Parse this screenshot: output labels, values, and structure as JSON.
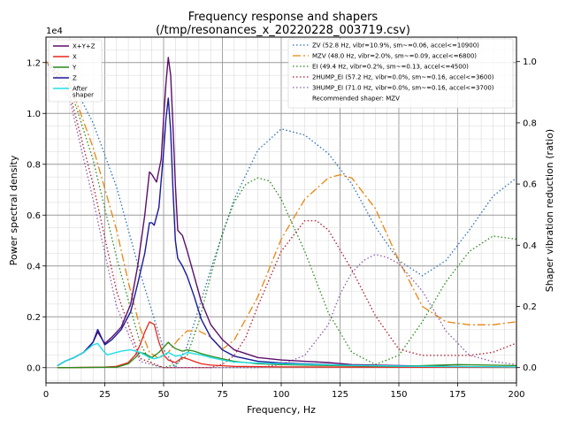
{
  "chart_data": {
    "type": "line",
    "title": "Frequency response and shapers",
    "subtitle": "(/tmp/resonances_x_20220228_003719.csv)",
    "xlabel": "Frequency, Hz",
    "ylabel": "Power spectral density",
    "y2label": "Shaper vibration reduction (ratio)",
    "y_multiplier_label": "1e4",
    "xlim": [
      0,
      200
    ],
    "ylim": [
      -0.06,
      1.3
    ],
    "y2lim": [
      -0.05,
      1.08
    ],
    "grid": true,
    "x_ticks": [
      0,
      25,
      50,
      75,
      100,
      125,
      150,
      175,
      200
    ],
    "y_ticks": [
      0.0,
      0.2,
      0.4,
      0.6,
      0.8,
      1.0,
      1.2
    ],
    "y_tick_labels": [
      "0.0",
      "0.2",
      "0.4",
      "0.6",
      "0.8",
      "1.0",
      "1.2"
    ],
    "y2_ticks": [
      0.0,
      0.2,
      0.4,
      0.6,
      0.8,
      1.0
    ],
    "y2_tick_labels": [
      "0.0",
      "0.2",
      "0.4",
      "0.6",
      "0.8",
      "1.0"
    ],
    "legend_left": {
      "placement": "top-left",
      "entries": [
        {
          "label": "X+Y+Z",
          "color": "#5c0f6b"
        },
        {
          "label": "X",
          "color": "#e8261b"
        },
        {
          "label": "Y",
          "color": "#2a8a1a"
        },
        {
          "label": "Z",
          "color": "#1a1a9a"
        },
        {
          "label": "After\nshaper",
          "color": "#22e0e8"
        }
      ]
    },
    "legend_right": {
      "placement": "top-right",
      "entries": [
        {
          "label": "ZV (52.8 Hz, vibr=10.9%, sm~=0.06, accel<=10900)",
          "color": "#2b6fb4",
          "dash": "1.5,2.5"
        },
        {
          "label": "MZV (48.0 Hz, vibr=2.0%, sm~=0.09, accel<=6800)",
          "color": "#e88612",
          "dash": "9,3,2,3"
        },
        {
          "label": "EI (49.4 Hz, vibr=0.2%, sm~=0.13, accel<=4500)",
          "color": "#2a8a1a",
          "dash": "1.5,2.5"
        },
        {
          "label": "2HUMP_EI (57.2 Hz, vibr=0.0%, sm~=0.16, accel<=3600)",
          "color": "#b2182b",
          "dash": "1.5,2.5"
        },
        {
          "label": "3HUMP_EI (71.0 Hz, vibr=0.0%, sm~=0.16, accel<=3700)",
          "color": "#8e5ba8",
          "dash": "1.5,2.5"
        }
      ],
      "recommended": "Recommended shaper: MZV"
    },
    "series": [
      {
        "name": "X+Y+Z",
        "axis": "left",
        "color": "#5c0f6b",
        "width": 1.4,
        "x": [
          5,
          8,
          12,
          16,
          20,
          22,
          25,
          28,
          32,
          36,
          39,
          42,
          44,
          45,
          47,
          49,
          50,
          51,
          52,
          53,
          54,
          55,
          56,
          58,
          60,
          63,
          66,
          70,
          75,
          80,
          90,
          100,
          110,
          120,
          130,
          150,
          175,
          200
        ],
        "y": [
          0.008,
          0.025,
          0.04,
          0.06,
          0.1,
          0.14,
          0.095,
          0.12,
          0.16,
          0.25,
          0.4,
          0.6,
          0.77,
          0.76,
          0.73,
          0.82,
          0.98,
          1.12,
          1.22,
          1.15,
          0.95,
          0.72,
          0.54,
          0.52,
          0.46,
          0.36,
          0.26,
          0.17,
          0.11,
          0.07,
          0.04,
          0.03,
          0.025,
          0.02,
          0.012,
          0.008,
          0.004,
          0.002
        ]
      },
      {
        "name": "Z",
        "axis": "left",
        "color": "#1a1a9a",
        "width": 1.4,
        "x": [
          5,
          8,
          12,
          16,
          20,
          22,
          25,
          28,
          32,
          36,
          39,
          42,
          44,
          45,
          46,
          48,
          50,
          51,
          52,
          53,
          54,
          55,
          56,
          58,
          60,
          63,
          66,
          70,
          75,
          80,
          90,
          100,
          110,
          120,
          130,
          150,
          175,
          200
        ],
        "y": [
          0.008,
          0.025,
          0.04,
          0.06,
          0.1,
          0.15,
          0.09,
          0.11,
          0.15,
          0.22,
          0.33,
          0.45,
          0.57,
          0.57,
          0.56,
          0.63,
          0.85,
          0.98,
          1.06,
          0.93,
          0.7,
          0.5,
          0.43,
          0.4,
          0.36,
          0.28,
          0.19,
          0.12,
          0.07,
          0.045,
          0.025,
          0.018,
          0.015,
          0.012,
          0.009,
          0.006,
          0.004,
          0.002
        ]
      },
      {
        "name": "X",
        "axis": "left",
        "color": "#e8261b",
        "width": 1.3,
        "x": [
          5,
          25,
          30,
          35,
          38,
          40,
          42,
          44,
          46,
          48,
          50,
          52,
          55,
          58,
          60,
          63,
          66,
          70,
          80,
          100,
          150,
          200
        ],
        "y": [
          0.0,
          0.002,
          0.005,
          0.02,
          0.05,
          0.09,
          0.14,
          0.18,
          0.17,
          0.1,
          0.05,
          0.03,
          0.02,
          0.04,
          0.035,
          0.025,
          0.015,
          0.01,
          0.005,
          0.003,
          0.002,
          0.001
        ]
      },
      {
        "name": "Y",
        "axis": "left",
        "color": "#2a8a1a",
        "width": 1.3,
        "x": [
          5,
          30,
          35,
          38,
          40,
          42,
          45,
          48,
          50,
          52,
          53,
          55,
          58,
          60,
          63,
          66,
          70,
          75,
          80,
          90,
          100,
          120,
          150,
          175,
          200
        ],
        "y": [
          0.0,
          0.002,
          0.015,
          0.04,
          0.06,
          0.055,
          0.04,
          0.06,
          0.08,
          0.1,
          0.09,
          0.075,
          0.065,
          0.07,
          0.065,
          0.055,
          0.045,
          0.035,
          0.025,
          0.015,
          0.012,
          0.008,
          0.005,
          0.012,
          0.008
        ]
      },
      {
        "name": "After\nshaper",
        "axis": "left",
        "color": "#22e0e8",
        "width": 1.4,
        "x": [
          5,
          8,
          12,
          16,
          20,
          22,
          24,
          26,
          28,
          32,
          36,
          40,
          42,
          44,
          46,
          48,
          50,
          52,
          55,
          58,
          60,
          63,
          66,
          70,
          75,
          80,
          90,
          100,
          110,
          120,
          130,
          150,
          175,
          200
        ],
        "y": [
          0.008,
          0.025,
          0.04,
          0.06,
          0.09,
          0.095,
          0.07,
          0.05,
          0.055,
          0.065,
          0.07,
          0.06,
          0.05,
          0.04,
          0.035,
          0.04,
          0.05,
          0.06,
          0.045,
          0.05,
          0.06,
          0.055,
          0.05,
          0.04,
          0.03,
          0.022,
          0.018,
          0.015,
          0.013,
          0.011,
          0.009,
          0.006,
          0.004,
          0.003
        ]
      },
      {
        "name": "ZV (52.8 Hz, vibr=10.9%, sm~=0.06, accel<=10900)",
        "axis": "right",
        "color": "#2b6fb4",
        "dash": "1.5,2.5",
        "width": 1.3,
        "x": [
          0,
          10,
          20,
          30,
          40,
          50,
          55,
          60,
          70,
          80,
          90,
          100,
          110,
          120,
          130,
          140,
          150,
          160,
          170,
          180,
          190,
          200
        ],
        "y": [
          1.0,
          0.95,
          0.8,
          0.59,
          0.31,
          0.06,
          0.0,
          0.07,
          0.32,
          0.55,
          0.71,
          0.78,
          0.76,
          0.7,
          0.6,
          0.46,
          0.35,
          0.3,
          0.35,
          0.45,
          0.56,
          0.62
        ]
      },
      {
        "name": "MZV (48.0 Hz, vibr=2.0%, sm~=0.09, accel<=6800)",
        "axis": "right",
        "color": "#e88612",
        "dash": "9,3,2,3",
        "width": 1.3,
        "x": [
          0,
          10,
          20,
          30,
          35,
          40,
          44,
          48,
          52,
          56,
          60,
          65,
          70,
          75,
          80,
          90,
          100,
          110,
          120,
          125,
          130,
          140,
          150,
          160,
          170,
          180,
          190,
          200
        ],
        "y": [
          1.0,
          0.93,
          0.72,
          0.45,
          0.28,
          0.13,
          0.05,
          0.03,
          0.05,
          0.09,
          0.12,
          0.12,
          0.1,
          0.06,
          0.09,
          0.23,
          0.42,
          0.55,
          0.62,
          0.63,
          0.62,
          0.52,
          0.35,
          0.2,
          0.15,
          0.14,
          0.14,
          0.15
        ]
      },
      {
        "name": "EI (49.4 Hz, vibr=0.2%, sm~=0.13, accel<=4500)",
        "axis": "right",
        "color": "#2a8a1a",
        "dash": "1.5,2.5",
        "width": 1.3,
        "x": [
          0,
          10,
          20,
          30,
          40,
          45,
          50,
          55,
          60,
          65,
          70,
          75,
          80,
          85,
          90,
          95,
          100,
          110,
          120,
          130,
          140,
          150,
          160,
          170,
          180,
          190,
          200
        ],
        "y": [
          1.0,
          0.92,
          0.68,
          0.36,
          0.08,
          0.01,
          0.0,
          0.01,
          0.04,
          0.15,
          0.3,
          0.44,
          0.54,
          0.6,
          0.62,
          0.61,
          0.55,
          0.38,
          0.18,
          0.05,
          0.01,
          0.04,
          0.15,
          0.28,
          0.38,
          0.43,
          0.42
        ]
      },
      {
        "name": "2HUMP_EI (57.2 Hz, vibr=0.0%, sm~=0.16, accel<=3600)",
        "axis": "right",
        "color": "#b2182b",
        "dash": "1.5,2.5",
        "width": 1.3,
        "x": [
          0,
          10,
          20,
          30,
          40,
          50,
          60,
          70,
          75,
          80,
          85,
          90,
          100,
          110,
          115,
          120,
          130,
          140,
          150,
          160,
          170,
          180,
          190,
          200
        ],
        "y": [
          1.0,
          0.9,
          0.6,
          0.25,
          0.03,
          0.0,
          0.0,
          0.0,
          0.01,
          0.04,
          0.1,
          0.2,
          0.38,
          0.48,
          0.48,
          0.45,
          0.32,
          0.17,
          0.06,
          0.04,
          0.04,
          0.04,
          0.05,
          0.08
        ]
      },
      {
        "name": "3HUMP_EI (71.0 Hz, vibr=0.0%, sm~=0.16, accel<=3700)",
        "axis": "right",
        "color": "#8e5ba8",
        "dash": "1.5,2.5",
        "width": 1.3,
        "x": [
          0,
          10,
          20,
          30,
          40,
          50,
          60,
          70,
          80,
          90,
          100,
          110,
          120,
          125,
          130,
          135,
          140,
          145,
          150,
          160,
          170,
          180,
          190,
          200
        ],
        "y": [
          1.0,
          0.88,
          0.55,
          0.2,
          0.02,
          0.0,
          0.0,
          0.0,
          0.0,
          0.0,
          0.01,
          0.04,
          0.14,
          0.24,
          0.31,
          0.35,
          0.37,
          0.36,
          0.34,
          0.25,
          0.12,
          0.04,
          0.02,
          0.01
        ]
      }
    ]
  }
}
